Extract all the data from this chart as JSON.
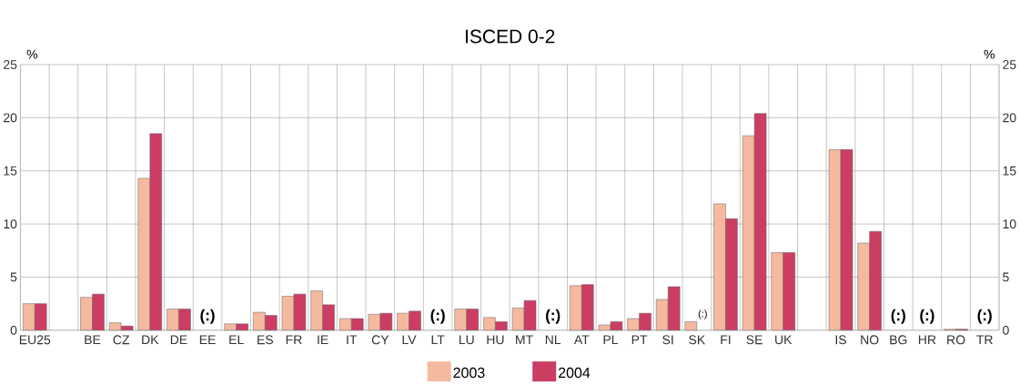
{
  "chart_data": {
    "type": "bar",
    "title": "ISCED 0-2",
    "ylabel": "%",
    "y2label": "%",
    "categories": [
      "EU25",
      null,
      "BE",
      "CZ",
      "DK",
      "DE",
      "EE",
      "EL",
      "ES",
      "FR",
      "IE",
      "IT",
      "CY",
      "LV",
      "LT",
      "LU",
      "HU",
      "MT",
      "NL",
      "AT",
      "PL",
      "PT",
      "SI",
      "SK",
      "FI",
      "SE",
      "UK",
      null,
      "IS",
      "NO",
      "BG",
      "HR",
      "RO",
      "TR"
    ],
    "series": [
      {
        "name": "2003",
        "color": "#f5b9a0",
        "values": [
          2.5,
          null,
          3.1,
          0.7,
          14.3,
          2.0,
          null,
          0.6,
          1.7,
          3.2,
          3.7,
          1.1,
          1.5,
          1.6,
          null,
          2.0,
          1.2,
          2.1,
          null,
          4.2,
          0.5,
          1.1,
          2.9,
          0.8,
          11.9,
          18.3,
          7.3,
          null,
          17.0,
          8.2,
          null,
          null,
          0.1,
          null
        ]
      },
      {
        "name": "2004",
        "color": "#cc3d63",
        "values": [
          2.5,
          null,
          3.4,
          0.4,
          18.5,
          2.0,
          null,
          0.6,
          1.4,
          3.4,
          2.4,
          1.1,
          1.6,
          1.8,
          null,
          2.0,
          0.8,
          2.8,
          null,
          4.3,
          0.8,
          1.6,
          4.1,
          null,
          10.5,
          20.4,
          7.3,
          null,
          17.0,
          9.3,
          null,
          null,
          0.1,
          null
        ]
      }
    ],
    "ylim": [
      0,
      25
    ],
    "yticks": [
      0,
      5,
      10,
      15,
      20,
      25
    ],
    "y2lim": [
      0,
      25
    ],
    "y2ticks": [
      0,
      5,
      10,
      15,
      20,
      25
    ],
    "grid": true,
    "legend": "bottom",
    "annotations": [
      "(:)",
      "(:)",
      "(:)",
      "(:)",
      "(:)",
      "(:)",
      "(:)"
    ]
  }
}
